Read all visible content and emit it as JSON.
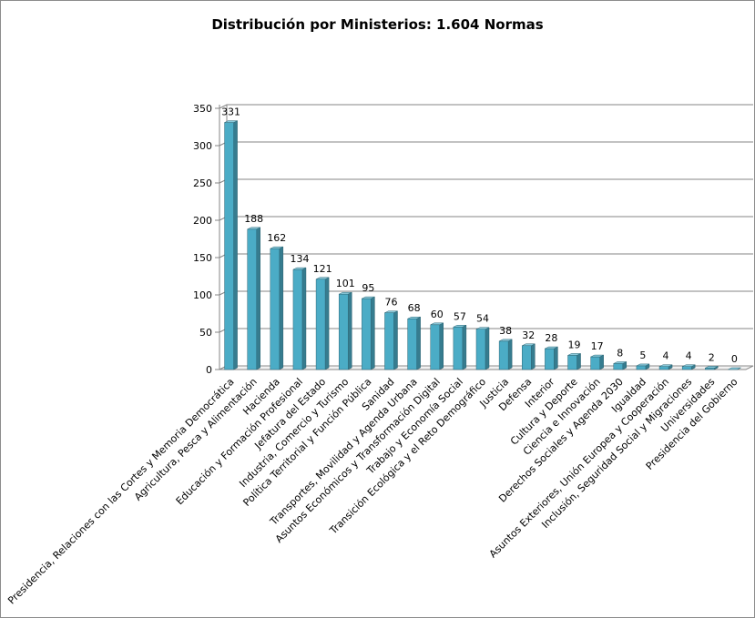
{
  "chart_data": {
    "type": "bar",
    "title": "Distribución por Ministerios: 1.604 Normas",
    "xlabel": "",
    "ylabel": "",
    "ylim": [
      0,
      350
    ],
    "yticks": [
      0,
      50,
      100,
      150,
      200,
      250,
      300,
      350
    ],
    "grid": true,
    "legend": "none",
    "bar_color": "#4bacc6",
    "categories": [
      "Presidencia, Relaciones con las Cortes y Memoria Democrática",
      "Agricultura, Pesca y Alimentación",
      "Hacienda",
      "Educación y Formación Profesional",
      "Jefatura del Estado",
      "Industria, Comercio y Turismo",
      "Política Territorial y Función Pública",
      "Sanidad",
      "Transportes, Movilidad y Agenda Urbana",
      "Asuntos Económicos y Transformación Digital",
      "Trabajo y Economía Social",
      "Transición Ecológica y el Reto Demográfico",
      "Justicia",
      "Defensa",
      "Interior",
      "Cultura y Deporte",
      "Ciencia e Innovación",
      "Derechos Sociales y Agenda 2030",
      "Igualdad",
      "Asuntos Exteriores, Unión Europea y Cooperación",
      "Inclusión, Seguridad Social y Migraciones",
      "Universidades",
      "Presidencia del Gobierno"
    ],
    "values": [
      331,
      188,
      162,
      134,
      121,
      101,
      95,
      76,
      68,
      60,
      57,
      54,
      38,
      32,
      28,
      19,
      17,
      8,
      5,
      4,
      4,
      2,
      0
    ]
  }
}
